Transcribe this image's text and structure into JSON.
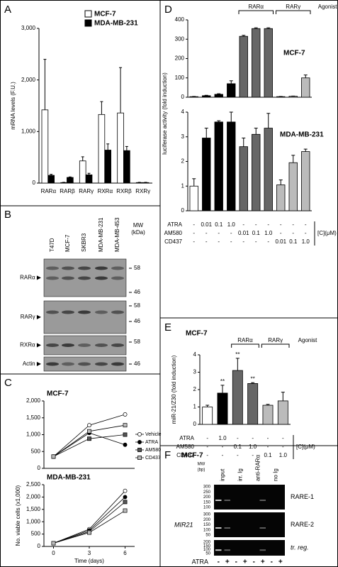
{
  "panel_labels": [
    "A",
    "B",
    "C",
    "D",
    "E",
    "F"
  ],
  "chart_data": [
    {
      "type": "bar",
      "ylabel": "mRNA levels (F.U.)",
      "categories": [
        "RARα",
        "RARβ",
        "RARγ",
        "RXRα",
        "RXRβ",
        "RXRγ"
      ],
      "series": [
        {
          "name": "MCF-7",
          "color": "#ffffff",
          "values": [
            1420,
            10,
            430,
            1330,
            1360,
            10
          ],
          "errors": [
            980,
            5,
            80,
            250,
            880,
            5
          ]
        },
        {
          "name": "MDA-MB-231",
          "color": "#000000",
          "values": [
            150,
            110,
            160,
            640,
            630,
            10
          ],
          "errors": [
            20,
            10,
            30,
            120,
            80,
            5
          ]
        }
      ],
      "ylim": [
        0,
        3000
      ],
      "yticks": [
        0,
        {
          "value": 1000,
          "label": "1,000"
        },
        {
          "value": 2000,
          "label": "2,000"
        },
        {
          "value": 3000,
          "label": "3,000"
        }
      ],
      "legend": "upper right"
    },
    {
      "type": "bar",
      "title": "MCF-7",
      "ylabel": "luciferase activity (fold induction)",
      "values": [
        3,
        8,
        15,
        70,
        315,
        355,
        355,
        3,
        5,
        100
      ],
      "errors": [
        1,
        2,
        3,
        15,
        5,
        4,
        4,
        1,
        1,
        15
      ],
      "colors": [
        "#ffffff",
        "#000000",
        "#000000",
        "#000000",
        "#666666",
        "#666666",
        "#666666",
        "#bbbbbb",
        "#bbbbbb",
        "#bbbbbb"
      ],
      "ylim": [
        0,
        400
      ],
      "yticks": [
        0,
        100,
        200,
        300,
        400
      ],
      "annotations": [
        "RARα",
        "RARγ",
        "Agonist"
      ]
    },
    {
      "type": "bar",
      "title": "MDA-MB-231",
      "values": [
        1.0,
        2.95,
        3.6,
        3.6,
        2.6,
        3.1,
        3.35,
        1.05,
        1.95,
        2.4
      ],
      "errors": [
        0.3,
        0.4,
        0.05,
        0.4,
        0.35,
        0.25,
        0.6,
        0.2,
        0.3,
        0.1
      ],
      "colors": [
        "#ffffff",
        "#000000",
        "#000000",
        "#000000",
        "#666666",
        "#666666",
        "#666666",
        "#bbbbbb",
        "#bbbbbb",
        "#bbbbbb"
      ],
      "ylim": [
        0,
        4
      ],
      "yticks": [
        0,
        1,
        2,
        3,
        4
      ],
      "treatments": {
        "unit": "[C](μM)",
        "rows": [
          {
            "name": "ATRA",
            "values": [
              "-",
              "0.01",
              "0.1",
              "1.0",
              "-",
              "-",
              "-",
              "-",
              "-",
              "-"
            ]
          },
          {
            "name": "AM580",
            "values": [
              "-",
              "-",
              "-",
              "-",
              "0.01",
              "0.1",
              "1.0",
              "-",
              "-",
              "-"
            ]
          },
          {
            "name": "CD437",
            "values": [
              "-",
              "-",
              "-",
              "-",
              "-",
              "-",
              "-",
              "0.01",
              "0.1",
              "1.0"
            ]
          }
        ]
      }
    },
    {
      "type": "bar",
      "title": "MCF-7",
      "ylabel": "miR-21/Z30 (fold induction)",
      "values": [
        1.0,
        1.8,
        3.1,
        2.35,
        1.1,
        1.35
      ],
      "errors": [
        0.1,
        0.45,
        0.7,
        0.05,
        0.05,
        0.5
      ],
      "colors": [
        "#ffffff",
        "#000000",
        "#666666",
        "#666666",
        "#bbbbbb",
        "#bbbbbb"
      ],
      "significance": [
        null,
        "**",
        "**",
        "**",
        null,
        null
      ],
      "ylim": [
        0,
        4
      ],
      "yticks": [
        0,
        1,
        2,
        3,
        4
      ],
      "annotations": [
        "RARα",
        "RARγ",
        "Agonist"
      ],
      "treatments": {
        "unit": "[C](μM)",
        "rows": [
          {
            "name": "ATRA",
            "values": [
              "-",
              "1.0",
              "-",
              "-",
              "-",
              "-"
            ]
          },
          {
            "name": "AM580",
            "values": [
              "-",
              "-",
              "0.1",
              "1.0",
              "-",
              "-"
            ]
          },
          {
            "name": "CD437",
            "values": [
              "-",
              "-",
              "-",
              "-",
              "0.1",
              "1.0"
            ]
          }
        ]
      }
    },
    {
      "type": "line",
      "title": "MCF-7",
      "x": [
        0,
        3,
        6
      ],
      "xlim": [
        -0.8,
        6.8
      ],
      "ylim": [
        0,
        2000
      ],
      "yticks": [
        0,
        500,
        {
          "value": 1000,
          "label": "1,000"
        },
        {
          "value": 1500,
          "label": "1,500"
        },
        {
          "value": 2000,
          "label": "2,000"
        }
      ],
      "legend": "lower right",
      "series": [
        {
          "name": "Vehicle",
          "color": "#ffffff",
          "marker": "circle",
          "values": [
            350,
            1280,
            1600
          ]
        },
        {
          "name": "ATRA",
          "color": "#000000",
          "marker": "circle",
          "values": [
            350,
            1050,
            700
          ]
        },
        {
          "name": "AM580",
          "color": "#555555",
          "marker": "square",
          "values": [
            350,
            880,
            1000
          ]
        },
        {
          "name": "CD437",
          "color": "#bbbbbb",
          "marker": "square",
          "values": [
            350,
            1100,
            1280
          ]
        }
      ]
    },
    {
      "type": "line",
      "title": "MDA-MB-231",
      "xlabel": "Time (days)",
      "ylabel": "No. viable cells (x1,000)",
      "x": [
        0,
        3,
        6
      ],
      "xlim": [
        -0.8,
        6.8
      ],
      "xticks": [
        0,
        3,
        6
      ],
      "ylim": [
        0,
        2500
      ],
      "yticks": [
        0,
        500,
        {
          "value": 1000,
          "label": "1,000"
        },
        {
          "value": 1500,
          "label": "1,500"
        },
        {
          "value": 2000,
          "label": "2,000"
        },
        {
          "value": 2500,
          "label": "2,500"
        }
      ],
      "series": [
        {
          "name": "Vehicle",
          "color": "#ffffff",
          "marker": "circle",
          "values": [
            130,
            700,
            2250
          ]
        },
        {
          "name": "ATRA",
          "color": "#000000",
          "marker": "circle",
          "values": [
            130,
            650,
            2000
          ]
        },
        {
          "name": "AM580",
          "color": "#555555",
          "marker": "square",
          "values": [
            130,
            600,
            1800
          ]
        },
        {
          "name": "CD437",
          "color": "#bbbbbb",
          "marker": "square",
          "values": [
            130,
            560,
            1450
          ]
        }
      ]
    }
  ],
  "blot": {
    "lanes": [
      "T47D",
      "MCF-7",
      "SKBR3",
      "MDA-MB-231",
      "MDA-MB-453"
    ],
    "mw_title": "MW",
    "mw_unit": "(kDa)",
    "rows": [
      {
        "label": "RARα ▶",
        "markers": [
          "58",
          "46"
        ]
      },
      {
        "label": "RARγ ▶",
        "markers": [
          "58",
          "46"
        ]
      },
      {
        "label": "RXRα ▶",
        "markers": [
          "58"
        ]
      },
      {
        "label": "Actin ▶",
        "markers": [
          "46"
        ]
      }
    ]
  },
  "gel": {
    "title": "MCF-7",
    "lanes": [
      "input",
      "irr. Ig",
      "anti-RARα",
      "no Ig"
    ],
    "mw_title": "MW",
    "mw_unit": "(bp)",
    "gene": "MIR21",
    "rows": [
      {
        "label": "RARE-1",
        "markers": [
          "300",
          "250",
          "200",
          "150",
          "100"
        ]
      },
      {
        "label": "RARE-2",
        "markers": [
          "300",
          "200",
          "150",
          "100",
          "50"
        ]
      },
      {
        "label": "tr. reg.",
        "markers": [
          "200",
          "150",
          "100",
          "50"
        ]
      }
    ],
    "treatment": "ATRA",
    "treatment_values": [
      "-",
      "+",
      "-",
      "+",
      "-",
      "+",
      "-",
      "+"
    ]
  }
}
